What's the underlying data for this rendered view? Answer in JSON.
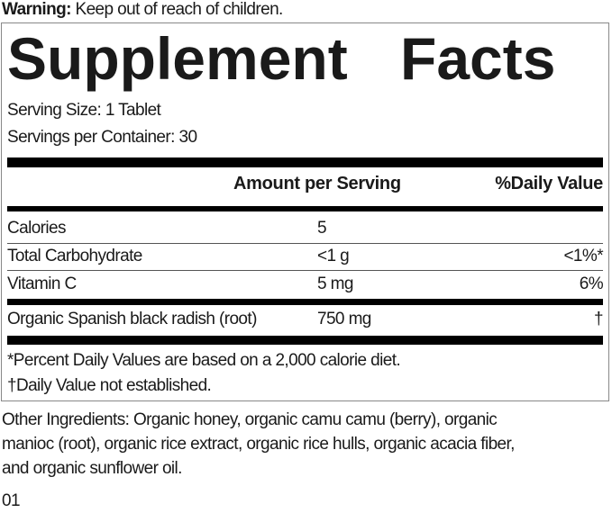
{
  "warning": {
    "label": "Warning:",
    "text": "Keep out of reach of children."
  },
  "title": "Supplement Facts",
  "serving_size": "Serving Size: 1 Tablet",
  "servings_per_container": "Servings per Container: 30",
  "header": {
    "amount": "Amount per Serving",
    "daily_value": "%Daily Value"
  },
  "rows": [
    {
      "name": "Calories",
      "amount": "5",
      "dv": ""
    },
    {
      "name": "Total Carbohydrate",
      "amount": "<1 g",
      "dv": "<1%*"
    },
    {
      "name": "Vitamin C",
      "amount": "5 mg",
      "dv": "6%"
    },
    {
      "name": "Organic Spanish black radish (root)",
      "amount": "750 mg",
      "dv": "†"
    }
  ],
  "footnotes": [
    "*Percent Daily Values are based on a 2,000 calorie diet.",
    "†Daily Value not established."
  ],
  "other_ingredients": [
    "Other Ingredients: Organic honey, organic camu camu (berry), organic",
    "manioc (root), organic rice extract, organic rice hulls, organic acacia fiber,",
    "and organic sunflower oil."
  ],
  "code": "01"
}
